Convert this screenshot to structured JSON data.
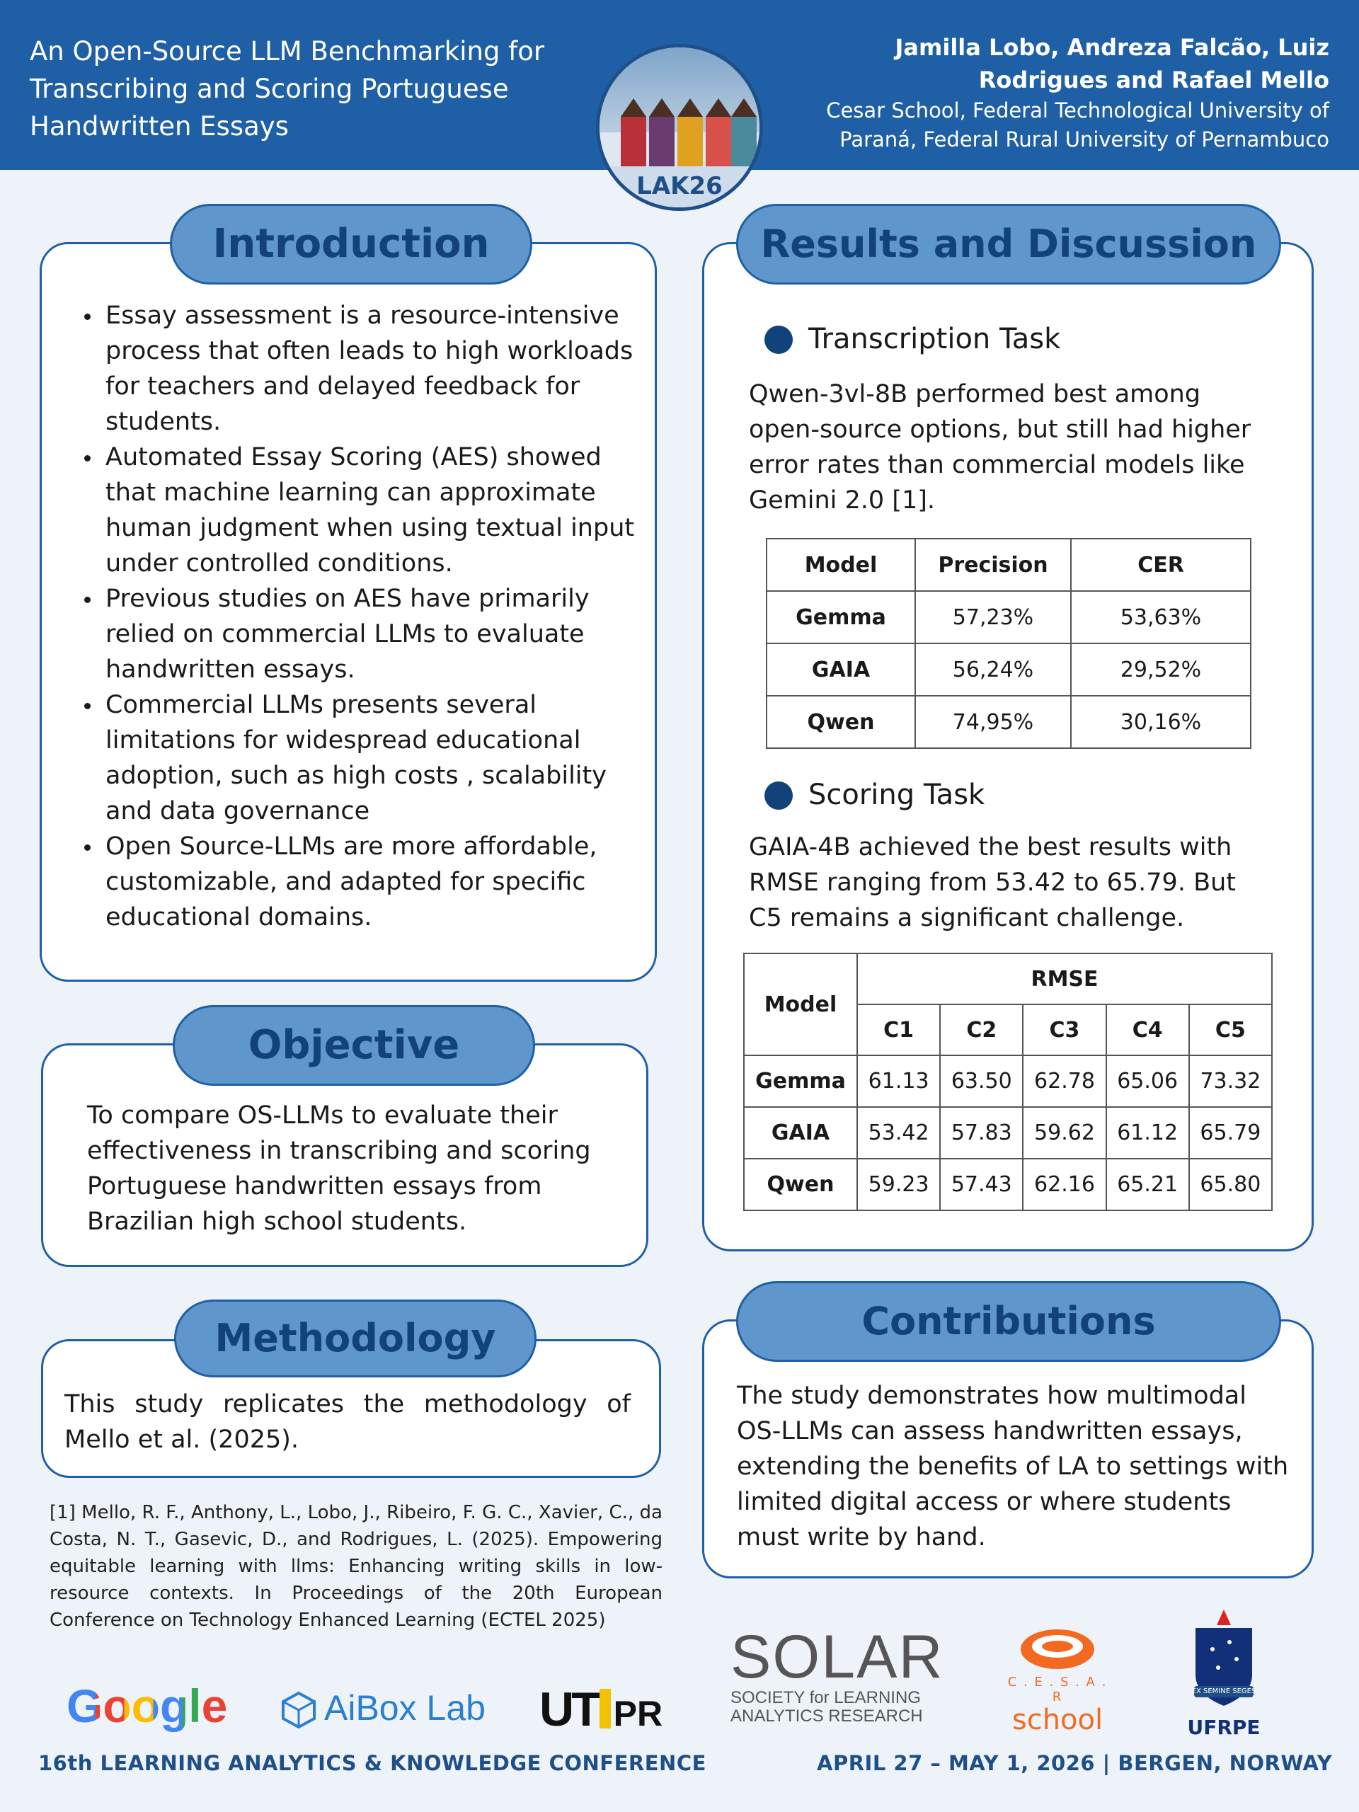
{
  "header": {
    "title": "An Open-Source LLM Benchmarking for Transcribing and Scoring Portuguese Handwritten Essays",
    "authors": "Jamilla Lobo, Andreza Falcão, Luiz Rodrigues and Rafael Mello",
    "affiliations": "Cesar School, Federal Technological University of Paraná, Federal Rural University of Pernambuco",
    "logo_label": "LAK26"
  },
  "introduction": {
    "heading": "Introduction",
    "bullets": [
      "Essay assessment is a resource-intensive process that often leads to high workloads for teachers and delayed feedback for students.",
      "Automated Essay Scoring (AES) showed that machine learning can approximate human judgment when using textual input under controlled conditions.",
      "Previous studies on AES have primarily relied on commercial LLMs to evaluate handwritten essays.",
      "Commercial LLMs presents several limitations for widespread educational adoption, such as high costs , scalability and data governance",
      "Open Source-LLMs are more affordable, customizable, and adapted for specific educational domains."
    ]
  },
  "objective": {
    "heading": "Objective",
    "text": "To compare OS-LLMs to evaluate their effectiveness in transcribing and scoring Portuguese handwritten essays from Brazilian high school students."
  },
  "methodology": {
    "heading": "Methodology",
    "text": "This study replicates the methodology of Mello et al. (2025)."
  },
  "reference": "[1] Mello, R. F., Anthony, L., Lobo, J., Ribeiro, F. G. C., Xavier, C., da Costa, N. T., Gasevic, D., and Rodrigues, L. (2025). Empowering equitable learning with llms: Enhancing writing skills in low-resource contexts. In Proceedings of the 20th European Conference on Technology Enhanced Learning (ECTEL 2025)",
  "results": {
    "heading": "Results and Discussion",
    "transcription": {
      "subheading": "Transcription Task",
      "text": "Qwen-3vl-8B performed best among open-source options, but still had higher error rates than commercial models like Gemini 2.0 [1].",
      "table": {
        "headers": [
          "Model",
          "Precision",
          "CER"
        ],
        "rows": [
          [
            "Gemma",
            "57,23%",
            "53,63%"
          ],
          [
            "GAIA",
            "56,24%",
            "29,52%"
          ],
          [
            "Qwen",
            "74,95%",
            "30,16%"
          ]
        ]
      }
    },
    "scoring": {
      "subheading": "Scoring Task",
      "text": "GAIA-4B achieved the best results with RMSE ranging from 53.42 to 65.79. But C5 remains a significant challenge.",
      "table": {
        "model_header": "Model",
        "group_header": "RMSE",
        "columns": [
          "C1",
          "C2",
          "C3",
          "C4",
          "C5"
        ],
        "rows": [
          {
            "model": "Gemma",
            "values": [
              "61.13",
              "63.50",
              "62.78",
              "65.06",
              "73.32"
            ]
          },
          {
            "model": "GAIA",
            "values": [
              "53.42",
              "57.83",
              "59.62",
              "61.12",
              "65.79"
            ]
          },
          {
            "model": "Qwen",
            "values": [
              "59.23",
              "57.43",
              "62.16",
              "65.21",
              "65.80"
            ]
          }
        ]
      }
    }
  },
  "contributions": {
    "heading": "Contributions",
    "text": "The study demonstrates how multimodal OS-LLMs can assess handwritten essays, extending the benefits of LA to settings with limited digital access or where students must write by hand."
  },
  "logos": {
    "google": "Google",
    "aibox": "AiBox Lab",
    "utfpr_a": "UT",
    "utfpr_b": "PR",
    "solar_main": "SOLAR",
    "solar_sub1": "SOCIETY for LEARNING",
    "solar_sub2": "ANALYTICS RESEARCH",
    "cesar_top": "C . E . S . A . R",
    "cesar_bottom": "school",
    "ufrpe_motto": "EX SEMINE SEGES",
    "ufrpe": "UFRPE"
  },
  "footer": {
    "left": "16th LEARNING ANALYTICS & KNOWLEDGE CONFERENCE",
    "right": "APRIL 27 – MAY 1, 2026 | BERGEN, NORWAY"
  },
  "colors": {
    "header_bg": "#1f5fa6",
    "pill_bg": "#5f97cc",
    "accent_dark": "#12427a",
    "page_bg": "#eef3fa"
  }
}
